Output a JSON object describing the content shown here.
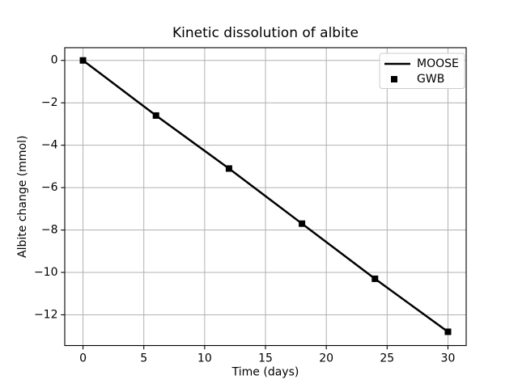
{
  "figure": {
    "background": "#ffffff",
    "foreground": "#000000"
  },
  "chart_data": {
    "type": "line",
    "title": "Kinetic dissolution of albite",
    "xlabel": "Time (days)",
    "ylabel": "Albite change (mmol)",
    "x": [
      0,
      6,
      12,
      18,
      24,
      30
    ],
    "series": [
      {
        "name": "MOOSE",
        "style": "line",
        "color": "#000000",
        "values": [
          0,
          -2.6,
          -5.1,
          -7.7,
          -10.3,
          -12.8
        ]
      },
      {
        "name": "GWB",
        "style": "square",
        "color": "#000000",
        "values": [
          0,
          -2.6,
          -5.1,
          -7.7,
          -10.3,
          -12.8
        ]
      }
    ],
    "xlim": [
      -1.5,
      31.5
    ],
    "ylim": [
      -13.45,
      0.6
    ],
    "xticks": [
      0,
      5,
      10,
      15,
      20,
      25,
      30
    ],
    "yticks": [
      0,
      -2,
      -4,
      -6,
      -8,
      -10,
      -12
    ],
    "grid": true,
    "grid_color": "#b0b0b0",
    "spine_color": "#000000",
    "legend": {
      "position": "upper-right",
      "border_color": "#cccccc",
      "entries": [
        "MOOSE",
        "GWB"
      ]
    }
  }
}
